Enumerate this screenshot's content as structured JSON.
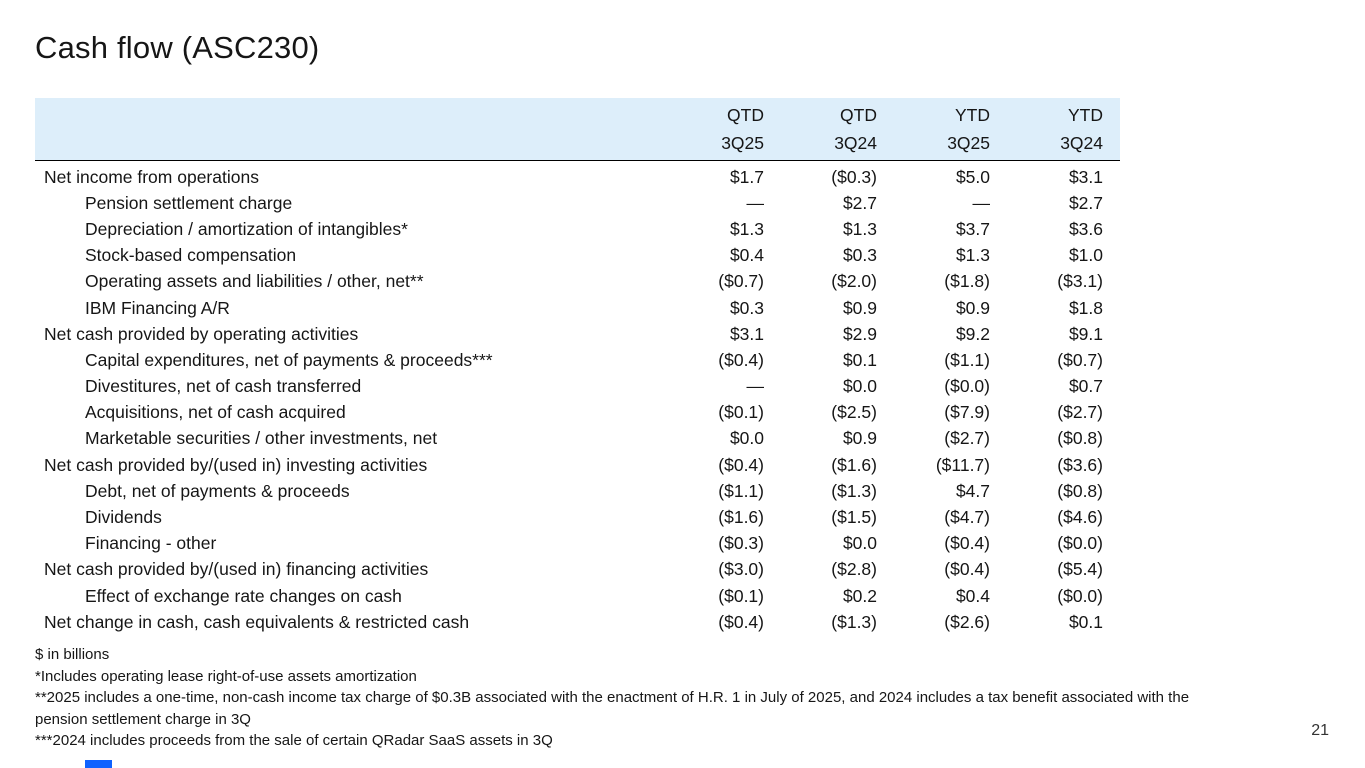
{
  "slide": {
    "title": "Cash flow (ASC230)",
    "page_number": "21"
  },
  "colors": {
    "header_band": "#ddeefa",
    "accent_blue": "#0f62fe",
    "text": "#161616"
  },
  "table": {
    "columns": [
      {
        "period": "QTD",
        "quarter": "3Q25"
      },
      {
        "period": "QTD",
        "quarter": "3Q24"
      },
      {
        "period": "YTD",
        "quarter": "3Q25"
      },
      {
        "period": "YTD",
        "quarter": "3Q24"
      }
    ],
    "rows": [
      {
        "label": "Net income from operations",
        "indent": 0,
        "values": [
          "$1.7",
          "($0.3)",
          "$5.0",
          "$3.1"
        ]
      },
      {
        "label": "Pension settlement charge",
        "indent": 1,
        "values": [
          "—",
          "$2.7",
          "—",
          "$2.7"
        ]
      },
      {
        "label": "Depreciation / amortization of intangibles*",
        "indent": 1,
        "values": [
          "$1.3",
          "$1.3",
          "$3.7",
          "$3.6"
        ]
      },
      {
        "label": "Stock-based compensation",
        "indent": 1,
        "values": [
          "$0.4",
          "$0.3",
          "$1.3",
          "$1.0"
        ]
      },
      {
        "label": "Operating assets and liabilities / other, net**",
        "indent": 1,
        "values": [
          "($0.7)",
          "($2.0)",
          "($1.8)",
          "($3.1)"
        ]
      },
      {
        "label": "IBM Financing A/R",
        "indent": 1,
        "values": [
          "$0.3",
          "$0.9",
          "$0.9",
          "$1.8"
        ]
      },
      {
        "label": "Net cash provided by operating activities",
        "indent": 0,
        "values": [
          "$3.1",
          "$2.9",
          "$9.2",
          "$9.1"
        ]
      },
      {
        "label": "Capital expenditures, net of payments & proceeds***",
        "indent": 1,
        "values": [
          "($0.4)",
          "$0.1",
          "($1.1)",
          "($0.7)"
        ]
      },
      {
        "label": "Divestitures, net of cash transferred",
        "indent": 1,
        "values": [
          "—",
          "$0.0",
          "($0.0)",
          "$0.7"
        ]
      },
      {
        "label": "Acquisitions, net of cash acquired",
        "indent": 1,
        "values": [
          "($0.1)",
          "($2.5)",
          "($7.9)",
          "($2.7)"
        ]
      },
      {
        "label": "Marketable securities / other investments, net",
        "indent": 1,
        "values": [
          "$0.0",
          "$0.9",
          "($2.7)",
          "($0.8)"
        ]
      },
      {
        "label": "Net cash provided by/(used in) investing activities",
        "indent": 0,
        "values": [
          "($0.4)",
          "($1.6)",
          "($11.7)",
          "($3.6)"
        ]
      },
      {
        "label": "Debt, net of payments & proceeds",
        "indent": 1,
        "values": [
          "($1.1)",
          "($1.3)",
          "$4.7",
          "($0.8)"
        ]
      },
      {
        "label": "Dividends",
        "indent": 1,
        "values": [
          "($1.6)",
          "($1.5)",
          "($4.7)",
          "($4.6)"
        ]
      },
      {
        "label": "Financing - other",
        "indent": 1,
        "values": [
          "($0.3)",
          "$0.0",
          "($0.4)",
          "($0.0)"
        ]
      },
      {
        "label": "Net cash provided by/(used in) financing activities",
        "indent": 0,
        "values": [
          "($3.0)",
          "($2.8)",
          "($0.4)",
          "($5.4)"
        ]
      },
      {
        "label": "Effect of exchange rate changes on cash",
        "indent": 1,
        "values": [
          "($0.1)",
          "$0.2",
          "$0.4",
          "($0.0)"
        ]
      },
      {
        "label": "Net change in cash, cash equivalents & restricted cash",
        "indent": 0,
        "values": [
          "($0.4)",
          "($1.3)",
          "($2.6)",
          "$0.1"
        ]
      }
    ]
  },
  "footnotes": [
    "$ in billions",
    "*Includes operating lease right-of-use assets amortization",
    "**2025 includes a one-time, non-cash income tax charge of $0.3B associated with the enactment of H.R. 1 in July of 2025, and 2024 includes a tax benefit associated with the pension settlement charge in 3Q",
    "***2024 includes proceeds from the sale of certain QRadar SaaS assets in 3Q"
  ]
}
